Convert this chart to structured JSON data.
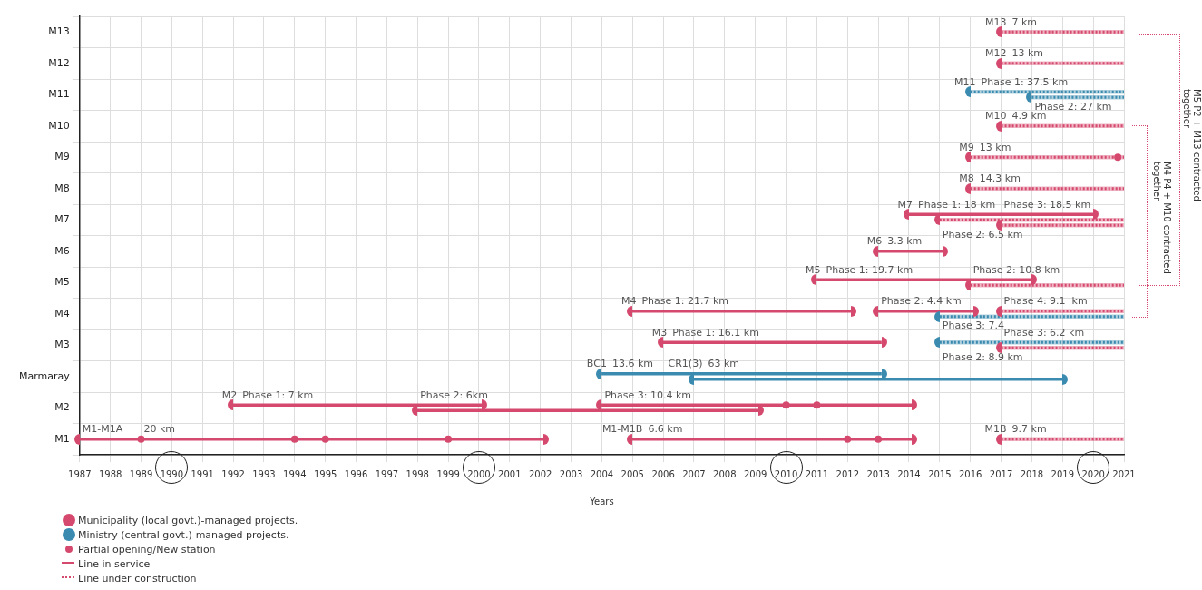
{
  "chart_data": {
    "type": "bar",
    "orientation": "horizontal",
    "xlabel": "Years",
    "categories": [
      "M13",
      "M12",
      "M11",
      "M10",
      "M9",
      "M8",
      "M7",
      "M6",
      "M5",
      "M4",
      "M3",
      "Marmaray",
      "M2",
      "M1"
    ],
    "xlim": [
      1987,
      2021
    ],
    "xticks": [
      1987,
      1988,
      1989,
      1990,
      1991,
      1992,
      1993,
      1994,
      1995,
      1996,
      1997,
      1998,
      1999,
      2000,
      2001,
      2002,
      2003,
      2004,
      2005,
      2006,
      2007,
      2008,
      2009,
      2010,
      2011,
      2012,
      2013,
      2014,
      2015,
      2016,
      2017,
      2018,
      2019,
      2020,
      2021
    ],
    "grid": true,
    "legend": "bottom left",
    "series": [
      {
        "name": "Municipality (local govt.)-managed projects.",
        "color": "#d6496e",
        "marker": "circle",
        "line_style": "solid",
        "base": [
          null,
          null,
          null,
          null,
          null,
          null,
          2014,
          2013,
          2011,
          2005,
          2006,
          null,
          1992,
          1987
        ],
        "values": [
          null,
          null,
          null,
          null,
          null,
          null,
          6,
          2.1,
          7,
          7.1,
          7.1,
          null,
          8.1,
          15.1
        ]
      },
      {
        "name": "Ministry (central govt.)-managed projects.",
        "color": "#3b8bb0",
        "marker": "circle",
        "line_style": "solid",
        "base": [
          null,
          null,
          null,
          null,
          null,
          null,
          null,
          null,
          null,
          null,
          null,
          2004,
          null,
          null
        ],
        "values": [
          null,
          null,
          null,
          null,
          null,
          null,
          null,
          null,
          null,
          null,
          null,
          9.1,
          null,
          null
        ]
      },
      {
        "name": "Partial opening/New station",
        "type": "scatter",
        "color": "#d6496e",
        "marker": "circle",
        "x": [
          "M1",
          "M1",
          "M1",
          "M1",
          "M1",
          "M1",
          "M2",
          "M2",
          "M9"
        ],
        "values": [
          1989,
          1994,
          1995,
          1999,
          2012,
          2013,
          2010,
          2011,
          2020.8
        ]
      },
      {
        "name": "Line in service",
        "color": "#d6496e",
        "line_style": "solid",
        "base": [
          null,
          null,
          null,
          null,
          null,
          null,
          null,
          null,
          null,
          2013,
          null,
          null,
          2004,
          2005
        ],
        "values": [
          null,
          null,
          null,
          null,
          null,
          null,
          null,
          null,
          null,
          3.1,
          null,
          null,
          10.1,
          9.1
        ]
      },
      {
        "line_style": "solid",
        "colors": [
          null,
          null,
          null,
          null,
          null,
          null,
          null,
          null,
          null,
          null,
          null,
          "#3b8bb0",
          "#d6496e",
          null
        ],
        "base": [
          null,
          null,
          null,
          null,
          null,
          null,
          null,
          null,
          null,
          null,
          null,
          2007,
          1998,
          null
        ],
        "values": [
          null,
          null,
          null,
          null,
          null,
          null,
          null,
          null,
          null,
          null,
          null,
          12,
          11.1,
          null
        ]
      },
      {
        "name": "Line under construction",
        "color": "#d6496e",
        "line_style": "dotted",
        "colors": [
          "#d6496e",
          "#d6496e",
          "#3b8bb0",
          "#d6496e",
          "#d6496e",
          "#d6496e",
          "#d6496e",
          null,
          "#d6496e",
          "#3b8bb0",
          "#3b8bb0",
          null,
          null,
          "#d6496e"
        ],
        "base": [
          2017,
          2017,
          2016,
          2017,
          2016,
          2016,
          2015,
          null,
          2016,
          2015,
          2015,
          null,
          null,
          2017
        ],
        "values": [
          4,
          4,
          5,
          4,
          5,
          5,
          6,
          null,
          5,
          6,
          6,
          null,
          null,
          4
        ]
      },
      {
        "line_style": "dotted",
        "colors": [
          null,
          null,
          "#3b8bb0",
          null,
          null,
          null,
          "#d6496e",
          null,
          null,
          "#d6496e",
          "#d6496e",
          null,
          null,
          null
        ],
        "base": [
          null,
          null,
          2018,
          null,
          null,
          null,
          2017,
          null,
          null,
          2017,
          2017,
          null,
          null,
          null
        ],
        "values": [
          null,
          null,
          3,
          null,
          null,
          null,
          4,
          null,
          null,
          4,
          4,
          null,
          null,
          null
        ]
      }
    ],
    "annotations": [
      {
        "text": "M13",
        "x": 2017,
        "y": "M13"
      },
      {
        "text": "7 km",
        "x": 2017,
        "y": "M13"
      },
      {
        "text": "M12",
        "x": 2017,
        "y": "M12"
      },
      {
        "text": "13 km",
        "x": 2017,
        "y": "M12"
      },
      {
        "text": "M11",
        "x": 2016,
        "y": "M11"
      },
      {
        "text": "Phase 1: 37.5 km",
        "x": 2016,
        "y": "M11"
      },
      {
        "text": "Phase 2: 27 km",
        "x": 2018,
        "y": "M11"
      },
      {
        "text": "M10",
        "x": 2017,
        "y": "M10"
      },
      {
        "text": "4.9 km",
        "x": 2017,
        "y": "M10"
      },
      {
        "text": "M9",
        "x": 2016,
        "y": "M9"
      },
      {
        "text": "13 km",
        "x": 2016,
        "y": "M9"
      },
      {
        "text": "M8",
        "x": 2016,
        "y": "M8"
      },
      {
        "text": "14.3 km",
        "x": 2016,
        "y": "M8"
      },
      {
        "text": "M7",
        "x": 2014,
        "y": "M7"
      },
      {
        "text": "Phase 1: 18 km",
        "x": 2014,
        "y": "M7"
      },
      {
        "text": "Phase 3: 18.5 km",
        "x": 2017,
        "y": "M7"
      },
      {
        "text": "Phase 2: 6.5 km",
        "x": 2015,
        "y": "M7"
      },
      {
        "text": "M6",
        "x": 2013,
        "y": "M6"
      },
      {
        "text": "3.3 km",
        "x": 2013,
        "y": "M6"
      },
      {
        "text": "M5",
        "x": 2011,
        "y": "M5"
      },
      {
        "text": "Phase 1: 19.7 km",
        "x": 2011,
        "y": "M5"
      },
      {
        "text": "Phase 2: 10.8 km",
        "x": 2016,
        "y": "M5"
      },
      {
        "text": "M4",
        "x": 2005,
        "y": "M4"
      },
      {
        "text": "Phase 1: 21.7 km",
        "x": 2005,
        "y": "M4"
      },
      {
        "text": "Phase 2: 4.4 km",
        "x": 2013,
        "y": "M4"
      },
      {
        "text": "Phase 4: 9.1  km",
        "x": 2017,
        "y": "M4"
      },
      {
        "text": "Phase 3: 7.4",
        "x": 2015,
        "y": "M4"
      },
      {
        "text": "M3",
        "x": 2006,
        "y": "M3"
      },
      {
        "text": "Phase 1: 16.1 km",
        "x": 2006,
        "y": "M3"
      },
      {
        "text": "Phase 3: 6.2 km",
        "x": 2017,
        "y": "M3"
      },
      {
        "text": "Phase 2: 8.9 km",
        "x": 2015,
        "y": "M3"
      },
      {
        "text": "BC1",
        "x": 2004,
        "y": "Marmaray"
      },
      {
        "text": "13.6 km",
        "x": 2004,
        "y": "Marmaray"
      },
      {
        "text": "CR1(3)",
        "x": 2007,
        "y": "Marmaray"
      },
      {
        "text": "63 km",
        "x": 2007,
        "y": "Marmaray"
      },
      {
        "text": "M2",
        "x": 1992,
        "y": "M2"
      },
      {
        "text": "Phase 1: 7 km",
        "x": 1992,
        "y": "M2"
      },
      {
        "text": "Phase 2: 6km",
        "x": 1998,
        "y": "M2"
      },
      {
        "text": "Phase 3: 10.4 km",
        "x": 2004,
        "y": "M2"
      },
      {
        "text": "M1-M1A",
        "x": 1987,
        "y": "M1"
      },
      {
        "text": "20 km",
        "x": 1989,
        "y": "M1"
      },
      {
        "text": "M1-M1B",
        "x": 2005,
        "y": "M1"
      },
      {
        "text": "6.6 km",
        "x": 2005,
        "y": "M1"
      },
      {
        "text": "M1B",
        "x": 2017,
        "y": "M1"
      },
      {
        "text": "9.7 km",
        "x": 2017,
        "y": "M1"
      },
      "M5 P2 + M13 contracted together",
      "M4 P4 + M10 contracted together"
    ]
  }
}
